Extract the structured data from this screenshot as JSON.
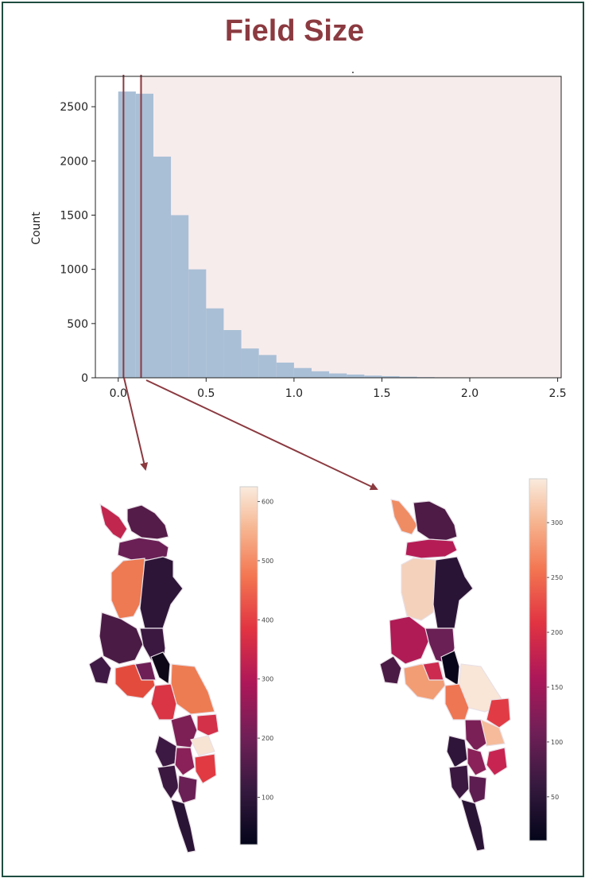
{
  "title": "Field Size",
  "histogram_dot": ".",
  "chart_data": [
    {
      "type": "bar",
      "subtype": "histogram",
      "ylabel": "Count",
      "xlabel": "",
      "xlim": [
        -0.13,
        2.52
      ],
      "ylim": [
        0,
        2780
      ],
      "xticks": [
        "0.0",
        "0.5",
        "1.0",
        "1.5",
        "2.0",
        "2.5"
      ],
      "xtick_values": [
        0.0,
        0.5,
        1.0,
        1.5,
        2.0,
        2.5
      ],
      "yticks": [
        "0",
        "500",
        "1000",
        "1500",
        "2000",
        "2500"
      ],
      "ytick_values": [
        0,
        500,
        1000,
        1500,
        2000,
        2500
      ],
      "bin_width": 0.1,
      "bin_start": 0.0,
      "values": [
        2640,
        2620,
        2040,
        1500,
        1000,
        640,
        440,
        270,
        210,
        140,
        90,
        60,
        40,
        30,
        20,
        15,
        10,
        6,
        4,
        2,
        1,
        1,
        0,
        0,
        0
      ],
      "bar_color": "#a9bfd6",
      "background_highlight_from": 0.12,
      "highlight_color": "#f7ecec",
      "markers": [
        0.03,
        0.13
      ],
      "marker_color": "#8b3a40",
      "grid": false
    },
    {
      "type": "colorbar",
      "name": "left-map-colorbar",
      "range": [
        20,
        625
      ],
      "ticks": [
        "100",
        "200",
        "300",
        "400",
        "500",
        "600"
      ],
      "tick_values": [
        100,
        200,
        300,
        400,
        500,
        600
      ],
      "colormap": "rocket"
    },
    {
      "type": "colorbar",
      "name": "right-map-colorbar",
      "range": [
        10,
        340
      ],
      "ticks": [
        "50",
        "100",
        "150",
        "200",
        "250",
        "300"
      ],
      "tick_values": [
        50,
        100,
        150,
        200,
        250,
        300
      ],
      "colormap": "rocket"
    }
  ]
}
